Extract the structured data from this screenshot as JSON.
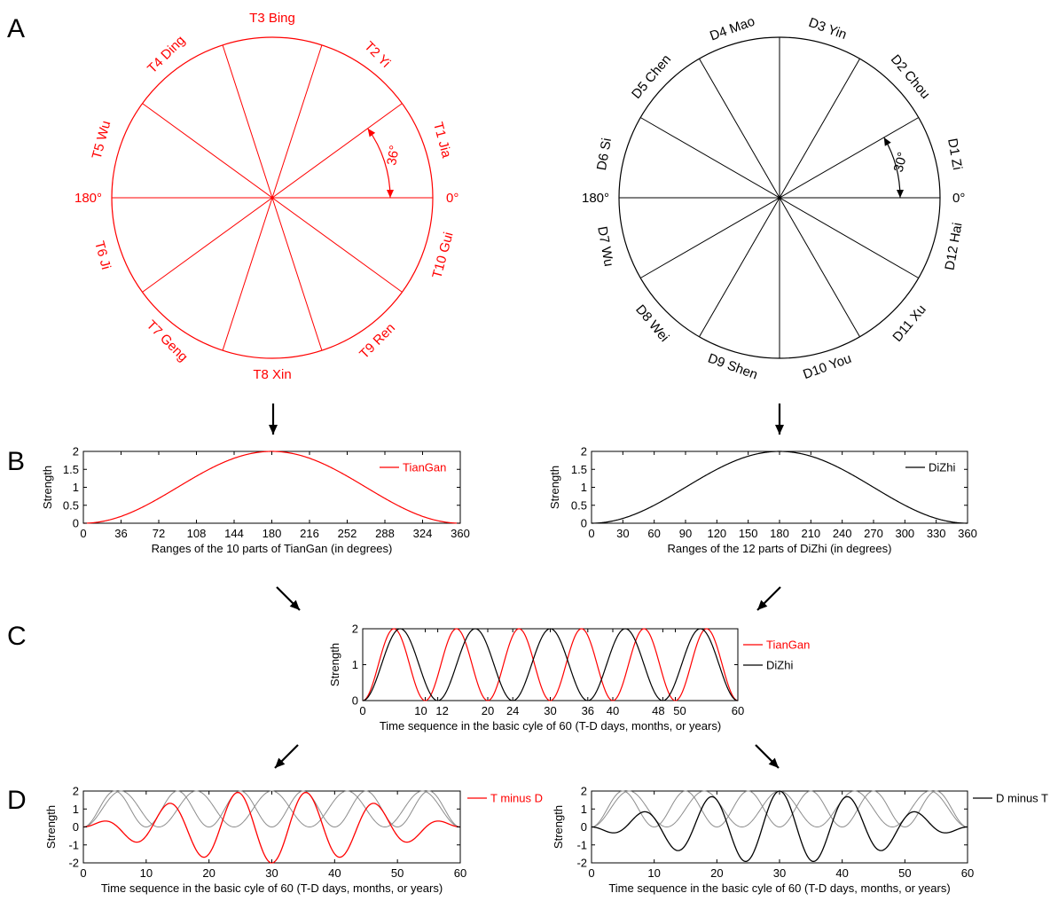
{
  "colors": {
    "tiangan": "#ff0000",
    "dizhi": "#000000",
    "base_gray": "#8c8c8c"
  },
  "panels": {
    "A": "A",
    "B": "B",
    "C": "C",
    "D": "D"
  },
  "wheel_tiangan": {
    "color": "#ff0000",
    "segments": 10,
    "labels": [
      "T1 Jia",
      "T2 Yi",
      "T3 Bing",
      "T4 Ding",
      "T5 Wu",
      "T6 Ji",
      "T7 Geng",
      "T8 Xin",
      "T9 Ren",
      "T10 Gui"
    ],
    "deg_0": "0°",
    "deg_180": "180°",
    "angle_label": "36°"
  },
  "wheel_dizhi": {
    "color": "#000000",
    "segments": 12,
    "labels": [
      "D1 Zi",
      "D2 Chou",
      "D3 Yin",
      "D4 Mao",
      "D5 Chen",
      "D6 Si",
      "D7 Wu",
      "D8 Wei",
      "D9 Shen",
      "D10 You",
      "D11 Xu",
      "D12 Hai"
    ],
    "deg_0": "0°",
    "deg_180": "180°",
    "angle_label": "30°"
  },
  "chart_data": [
    {
      "id": "B-left",
      "type": "line",
      "function": "1 - cos(x)",
      "x": [
        0,
        36,
        72,
        108,
        144,
        180,
        216,
        252,
        288,
        324,
        360
      ],
      "series": [
        {
          "name": "TianGan",
          "color": "#ff0000",
          "values": [
            0,
            0.191,
            0.691,
            1.309,
            1.809,
            2,
            1.809,
            1.309,
            0.691,
            0.191,
            0
          ]
        }
      ],
      "xlabel": "Ranges of the 10 parts of TianGan (in degrees)",
      "ylabel": "Strength",
      "xlim": [
        0,
        360
      ],
      "ylim": [
        0,
        2
      ],
      "xticks": [
        0,
        36,
        72,
        108,
        144,
        180,
        216,
        252,
        288,
        324,
        360
      ],
      "yticks": [
        0,
        0.5,
        1,
        1.5,
        2
      ],
      "ytick_labels": [
        "0",
        "0.5",
        "1",
        "1.5",
        "2"
      ],
      "legend": "top-right"
    },
    {
      "id": "B-right",
      "type": "line",
      "function": "1 - cos(x)",
      "x": [
        0,
        30,
        60,
        90,
        120,
        150,
        180,
        210,
        240,
        270,
        300,
        330,
        360
      ],
      "series": [
        {
          "name": "DiZhi",
          "color": "#000000",
          "values": [
            0,
            0.134,
            0.5,
            1,
            1.5,
            1.866,
            2,
            1.866,
            1.5,
            1,
            0.5,
            0.134,
            0
          ]
        }
      ],
      "xlabel": "Ranges of the 12 parts of DiZhi (in degrees)",
      "ylabel": "Strength",
      "xlim": [
        0,
        360
      ],
      "ylim": [
        0,
        2
      ],
      "xticks": [
        0,
        30,
        60,
        90,
        120,
        150,
        180,
        210,
        240,
        270,
        300,
        330,
        360
      ],
      "yticks": [
        0,
        0.5,
        1,
        1.5,
        2
      ],
      "ytick_labels": [
        "0",
        "0.5",
        "1",
        "1.5",
        "2"
      ],
      "legend": "top-right"
    },
    {
      "id": "C",
      "type": "line",
      "series": [
        {
          "name": "TianGan",
          "color": "#ff0000",
          "period": 10,
          "function": "1 - cos(2πt/10)"
        },
        {
          "name": "DiZhi",
          "color": "#000000",
          "period": 12,
          "function": "1 - cos(2πt/12)"
        }
      ],
      "xlabel": "Time sequence in the basic cyle of 60 (T-D days, months, or years)",
      "ylabel": "Strength",
      "xlim": [
        0,
        60
      ],
      "ylim": [
        0,
        2
      ],
      "xticks": [
        0,
        10,
        12,
        20,
        24,
        30,
        36,
        40,
        48,
        50,
        60
      ],
      "xtick_labels": [
        "0",
        "10",
        "12",
        "20",
        "24",
        "30",
        "36",
        "40",
        "48",
        "50",
        "60"
      ],
      "yticks": [
        0,
        1,
        2
      ],
      "ytick_labels": [
        "0",
        "1",
        "2"
      ],
      "legend": "outside-right"
    },
    {
      "id": "D-left",
      "type": "line",
      "series": [
        {
          "name": "T minus D",
          "color": "#ff0000",
          "function": "TianGan(t) - DiZhi(t)"
        }
      ],
      "background_series": [
        {
          "color": "#8c8c8c",
          "period": 10
        },
        {
          "color": "#8c8c8c",
          "period": 12
        }
      ],
      "xlabel": "Time sequence in the basic cyle of 60 (T-D days, months, or years)",
      "ylabel": "Strength",
      "xlim": [
        0,
        60
      ],
      "ylim": [
        -2,
        2
      ],
      "xticks": [
        0,
        10,
        20,
        30,
        40,
        50,
        60
      ],
      "yticks": [
        -2,
        -1,
        0,
        1,
        2
      ],
      "ytick_labels": [
        "-2",
        "-1",
        "0",
        "1",
        "2"
      ],
      "legend": "outside-right"
    },
    {
      "id": "D-right",
      "type": "line",
      "series": [
        {
          "name": "D minus T",
          "color": "#000000",
          "function": "DiZhi(t) - TianGan(t)"
        }
      ],
      "background_series": [
        {
          "color": "#8c8c8c",
          "period": 10
        },
        {
          "color": "#8c8c8c",
          "period": 12
        }
      ],
      "xlabel": "Time sequence in the basic cyle of 60 (T-D days, months, or years)",
      "ylabel": "Strength",
      "xlim": [
        0,
        60
      ],
      "ylim": [
        -2,
        2
      ],
      "xticks": [
        0,
        10,
        20,
        30,
        40,
        50,
        60
      ],
      "yticks": [
        -2,
        -1,
        0,
        1,
        2
      ],
      "ytick_labels": [
        "-2",
        "-1",
        "0",
        "1",
        "2"
      ],
      "legend": "outside-right"
    }
  ]
}
